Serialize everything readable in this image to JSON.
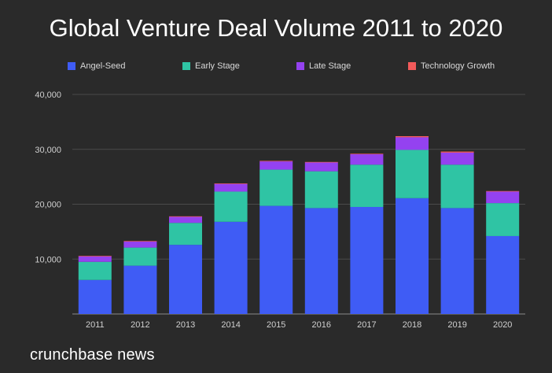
{
  "chart_data": {
    "type": "bar",
    "stacked": true,
    "title": "Global Venture Deal Volume 2011 to 2020",
    "categories": [
      "2011",
      "2012",
      "2013",
      "2014",
      "2015",
      "2016",
      "2017",
      "2018",
      "2019",
      "2020"
    ],
    "series": [
      {
        "name": "Angel-Seed",
        "color": "#3f5cf5",
        "values": [
          6200,
          8800,
          12600,
          16800,
          19700,
          19300,
          19500,
          21100,
          19300,
          14200
        ]
      },
      {
        "name": "Early Stage",
        "color": "#2fc4a4",
        "values": [
          3300,
          3300,
          4000,
          5500,
          6600,
          6700,
          7700,
          8800,
          7900,
          6000
        ]
      },
      {
        "name": "Late Stage",
        "color": "#9442f0",
        "values": [
          1000,
          1100,
          1100,
          1400,
          1500,
          1600,
          1900,
          2300,
          2200,
          2100
        ]
      },
      {
        "name": "Technology Growth",
        "color": "#f25a5a",
        "values": [
          100,
          100,
          100,
          100,
          100,
          100,
          100,
          200,
          200,
          100
        ]
      }
    ],
    "yticks": [
      10000,
      20000,
      30000,
      40000
    ],
    "ytick_labels": [
      "10,000",
      "20,000",
      "30,000",
      "40,000"
    ],
    "ylim": [
      0,
      40000
    ],
    "xlabel": "",
    "ylabel": "",
    "legend": "top",
    "grid": true
  },
  "footer": {
    "brand": "crunchbase news"
  }
}
